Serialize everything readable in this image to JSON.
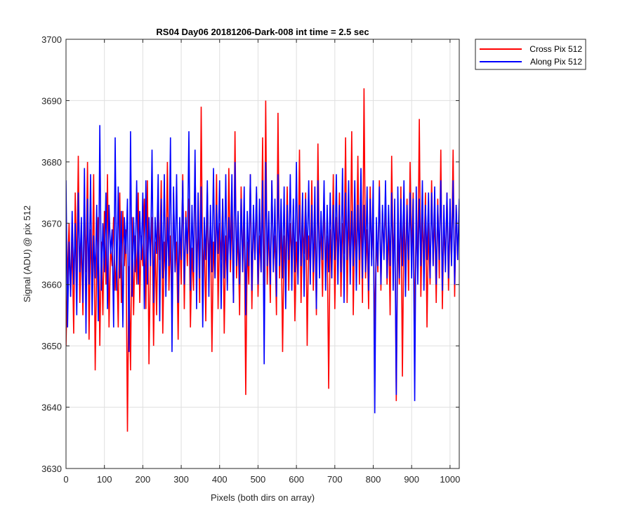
{
  "chart_data": {
    "type": "line",
    "title": "RS04 Day06 20181206-Dark-008 int time = 2.5 sec",
    "xlabel": "Pixels (both dirs on array)",
    "ylabel": "Signal (ADU) @ pix 512",
    "xlim": [
      0,
      1024
    ],
    "ylim": [
      3630,
      3700
    ],
    "xticks": [
      0,
      100,
      200,
      300,
      400,
      500,
      600,
      700,
      800,
      900,
      1000
    ],
    "yticks": [
      3630,
      3640,
      3650,
      3660,
      3670,
      3680,
      3690,
      3700
    ],
    "x_tick_labels": [
      "0",
      "100",
      "200",
      "300",
      "400",
      "500",
      "600",
      "700",
      "800",
      "900",
      "1000"
    ],
    "y_tick_labels": [
      "3630",
      "3640",
      "3650",
      "3660",
      "3670",
      "3680",
      "3690",
      "3700"
    ],
    "grid": true,
    "legend_position": "outside-top-right",
    "x_step": 4,
    "series": [
      {
        "name": "Cross Pix 512",
        "color": "#ff0000",
        "values": [
          3650,
          3662,
          3670,
          3658,
          3667,
          3652,
          3675,
          3661,
          3681,
          3657,
          3668,
          3655,
          3673,
          3662,
          3680,
          3651,
          3669,
          3659,
          3678,
          3646,
          3664,
          3671,
          3650,
          3667,
          3655,
          3672,
          3660,
          3678,
          3653,
          3666,
          3663,
          3671,
          3659,
          3665,
          3653,
          3675,
          3657,
          3672,
          3663,
          3669,
          3636,
          3663,
          3646,
          3671,
          3655,
          3668,
          3660,
          3675,
          3657,
          3668,
          3663,
          3674,
          3656,
          3677,
          3647,
          3665,
          3671,
          3650,
          3667,
          3655,
          3672,
          3664,
          3677,
          3652,
          3667,
          3661,
          3680,
          3659,
          3668,
          3654,
          3675,
          3662,
          3667,
          3651,
          3670,
          3660,
          3678,
          3656,
          3672,
          3663,
          3674,
          3653,
          3666,
          3659,
          3680,
          3662,
          3671,
          3657,
          3689,
          3660,
          3668,
          3654,
          3675,
          3663,
          3671,
          3649,
          3667,
          3661,
          3678,
          3656,
          3670,
          3664,
          3674,
          3652,
          3668,
          3660,
          3679,
          3662,
          3672,
          3657,
          3685,
          3661,
          3669,
          3655,
          3676,
          3663,
          3671,
          3642,
          3667,
          3660,
          3678,
          3656,
          3671,
          3664,
          3675,
          3658,
          3668,
          3662,
          3684,
          3653,
          3690,
          3660,
          3670,
          3657,
          3677,
          3663,
          3668,
          3655,
          3688,
          3661,
          3671,
          3649,
          3668,
          3662,
          3676,
          3659,
          3670,
          3664,
          3673,
          3654,
          3667,
          3661,
          3682,
          3657,
          3670,
          3665,
          3675,
          3650,
          3668,
          3662,
          3677,
          3659,
          3671,
          3655,
          3683,
          3663,
          3670,
          3658,
          3675,
          3662,
          3668,
          3643,
          3669,
          3661,
          3678,
          3656,
          3671,
          3664,
          3675,
          3658,
          3670,
          3665,
          3684,
          3657,
          3672,
          3662,
          3685,
          3655,
          3671,
          3663,
          3681,
          3660,
          3673,
          3657,
          3692,
          3661,
          3669,
          3656,
          3676,
          3664,
          3671,
          3652,
          3668,
          3662,
          3677,
          3659,
          3672,
          3665,
          3674,
          3660,
          3670,
          3655,
          3681,
          3663,
          3672,
          3641,
          3669,
          3660,
          3676,
          3645,
          3671,
          3663,
          3674,
          3659,
          3680,
          3664,
          3675,
          3653,
          3670,
          3662,
          3687,
          3658,
          3671,
          3664,
          3675,
          3653,
          3670,
          3660,
          3677,
          3663,
          3672,
          3657,
          3674,
          3661,
          3682,
          3656,
          3670,
          3663,
          3675,
          3659,
          3671,
          3664,
          3682,
          3658,
          3673,
          3664
        ]
      },
      {
        "name": "Along Pix 512",
        "color": "#0000ff",
        "values": [
          3677,
          3653,
          3667,
          3658,
          3672,
          3660,
          3670,
          3655,
          3675,
          3662,
          3671,
          3657,
          3679,
          3652,
          3674,
          3660,
          3678,
          3655,
          3668,
          3661,
          3673,
          3654,
          3686,
          3659,
          3670,
          3662,
          3675,
          3656,
          3673,
          3665,
          3669,
          3653,
          3684,
          3659,
          3676,
          3661,
          3672,
          3653,
          3671,
          3665,
          3674,
          3649,
          3685,
          3658,
          3671,
          3662,
          3677,
          3660,
          3672,
          3664,
          3675,
          3656,
          3677,
          3660,
          3671,
          3663,
          3682,
          3657,
          3671,
          3665,
          3678,
          3654,
          3674,
          3661,
          3678,
          3658,
          3671,
          3663,
          3684,
          3649,
          3676,
          3662,
          3678,
          3657,
          3671,
          3664,
          3677,
          3660,
          3671,
          3665,
          3685,
          3659,
          3673,
          3662,
          3682,
          3656,
          3675,
          3661,
          3676,
          3653,
          3671,
          3664,
          3677,
          3658,
          3673,
          3662,
          3679,
          3661,
          3673,
          3665,
          3677,
          3656,
          3674,
          3661,
          3678,
          3659,
          3671,
          3664,
          3678,
          3657,
          3680,
          3663,
          3672,
          3660,
          3674,
          3662,
          3676,
          3655,
          3672,
          3663,
          3678,
          3659,
          3673,
          3664,
          3676,
          3660,
          3674,
          3662,
          3677,
          3647,
          3680,
          3663,
          3672,
          3660,
          3677,
          3662,
          3674,
          3658,
          3678,
          3663,
          3674,
          3661,
          3676,
          3656,
          3673,
          3664,
          3678,
          3659,
          3674,
          3662,
          3680,
          3660,
          3673,
          3663,
          3675,
          3658,
          3674,
          3664,
          3677,
          3660,
          3673,
          3662,
          3676,
          3656,
          3677,
          3661,
          3672,
          3664,
          3677,
          3659,
          3673,
          3662,
          3675,
          3661,
          3673,
          3664,
          3678,
          3660,
          3673,
          3662,
          3679,
          3657,
          3675,
          3664,
          3677,
          3660,
          3672,
          3663,
          3677,
          3659,
          3673,
          3664,
          3679,
          3661,
          3673,
          3662,
          3676,
          3659,
          3674,
          3663,
          3677,
          3639,
          3671,
          3663,
          3676,
          3660,
          3673,
          3664,
          3677,
          3661,
          3673,
          3663,
          3675,
          3659,
          3674,
          3642,
          3676,
          3661,
          3674,
          3663,
          3677,
          3658,
          3673,
          3664,
          3675,
          3661,
          3674,
          3641,
          3676,
          3660,
          3674,
          3663,
          3677,
          3659,
          3673,
          3664,
          3675,
          3661,
          3675,
          3663,
          3676,
          3660,
          3673,
          3664,
          3677,
          3659,
          3673,
          3662,
          3675,
          3661,
          3674,
          3663,
          3677,
          3660,
          3673,
          3664,
          3674,
          3644,
          3674
        ]
      }
    ]
  }
}
